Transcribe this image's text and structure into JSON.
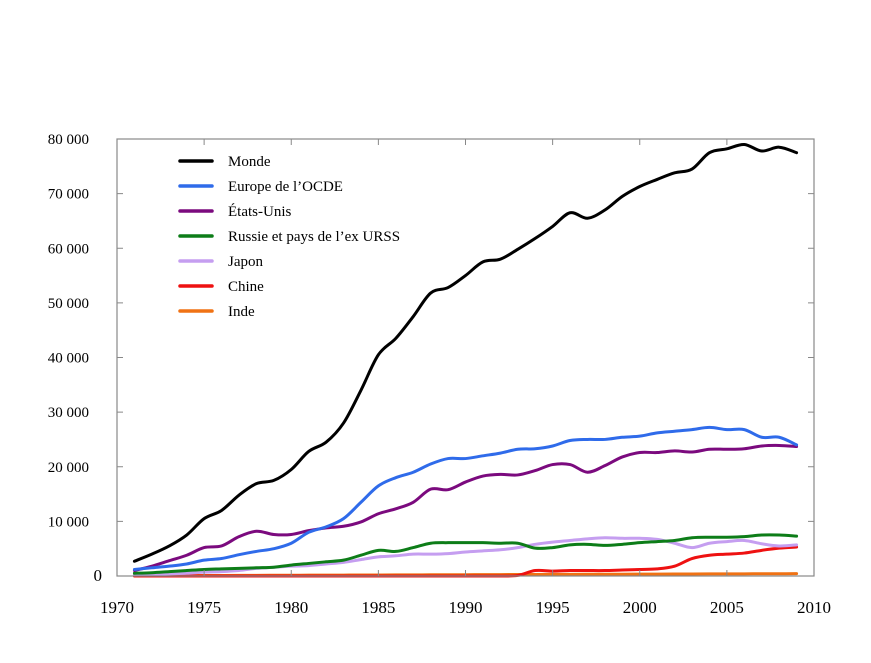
{
  "chart_data": {
    "type": "line",
    "title": "",
    "xlabel": "",
    "ylabel": "",
    "xlim": [
      1970,
      2010
    ],
    "ylim": [
      0,
      80000
    ],
    "x_ticks": [
      1970,
      1975,
      1980,
      1985,
      1990,
      1995,
      2000,
      2005,
      2010
    ],
    "y_ticks": [
      0,
      10000,
      20000,
      30000,
      40000,
      50000,
      60000,
      70000,
      80000
    ],
    "y_tick_labels": [
      "0",
      "10 000",
      "20 000",
      "30 000",
      "40 000",
      "50 000",
      "60 000",
      "70 000",
      "80 000"
    ],
    "grid": false,
    "legend_position": "top-left",
    "x": [
      1971,
      1972,
      1973,
      1974,
      1975,
      1976,
      1977,
      1978,
      1979,
      1980,
      1981,
      1982,
      1983,
      1984,
      1985,
      1986,
      1987,
      1988,
      1989,
      1990,
      1991,
      1992,
      1993,
      1994,
      1995,
      1996,
      1997,
      1998,
      1999,
      2000,
      2001,
      2002,
      2003,
      2004,
      2005,
      2006,
      2007,
      2008,
      2009
    ],
    "series": [
      {
        "name": "Monde",
        "color": "#000000",
        "values": [
          2700,
          4000,
          5500,
          7500,
          10500,
          12000,
          14800,
          16900,
          17500,
          19500,
          22800,
          24500,
          28000,
          34000,
          40500,
          43500,
          47500,
          51800,
          52800,
          55000,
          57500,
          58000,
          59800,
          61800,
          64000,
          66500,
          65500,
          67000,
          69500,
          71300,
          72600,
          73800,
          74500,
          77500,
          78200,
          79000,
          77800,
          78500,
          77500
        ]
      },
      {
        "name": "Europe de l’OCDE",
        "color": "#2f6bea",
        "values": [
          1200,
          1500,
          1800,
          2200,
          2900,
          3200,
          3900,
          4500,
          5000,
          6000,
          8000,
          9000,
          10500,
          13500,
          16500,
          18000,
          19000,
          20500,
          21500,
          21500,
          22000,
          22500,
          23200,
          23300,
          23800,
          24800,
          25000,
          25000,
          25400,
          25600,
          26200,
          26500,
          26800,
          27200,
          26800,
          26800,
          25400,
          25400,
          24000
        ]
      },
      {
        "name": "États-Unis",
        "color": "#7b0a7e",
        "values": [
          1000,
          1800,
          2800,
          3800,
          5200,
          5500,
          7200,
          8200,
          7600,
          7600,
          8300,
          8800,
          9100,
          9900,
          11400,
          12300,
          13500,
          15900,
          15800,
          17200,
          18300,
          18600,
          18500,
          19300,
          20400,
          20400,
          19000,
          20200,
          21800,
          22600,
          22600,
          22900,
          22700,
          23200,
          23200,
          23300,
          23800,
          23900,
          23700
        ]
      },
      {
        "name": "Russie et pays de l’ex URSS",
        "color": "#0d7d18",
        "values": [
          500,
          600,
          800,
          1000,
          1200,
          1300,
          1400,
          1500,
          1600,
          2000,
          2300,
          2600,
          2900,
          3800,
          4700,
          4500,
          5200,
          6000,
          6100,
          6100,
          6100,
          6000,
          6000,
          5100,
          5200,
          5700,
          5800,
          5600,
          5800,
          6100,
          6300,
          6500,
          7000,
          7100,
          7100,
          7200,
          7500,
          7500,
          7300
        ]
      },
      {
        "name": "Japon",
        "color": "#c59ef0",
        "values": [
          200,
          300,
          400,
          500,
          700,
          800,
          1000,
          1400,
          1600,
          1800,
          1900,
          2200,
          2500,
          3000,
          3500,
          3700,
          4000,
          4000,
          4100,
          4400,
          4600,
          4800,
          5200,
          5800,
          6200,
          6500,
          6800,
          7000,
          6900,
          6900,
          6700,
          6000,
          5200,
          6000,
          6300,
          6500,
          5900,
          5500,
          5700
        ]
      },
      {
        "name": "Chine",
        "color": "#ee1111",
        "values": [
          0,
          0,
          0,
          0,
          0,
          0,
          0,
          0,
          0,
          0,
          0,
          0,
          0,
          0,
          0,
          0,
          0,
          0,
          0,
          0,
          0,
          0,
          100,
          1000,
          900,
          1000,
          1000,
          1000,
          1100,
          1200,
          1300,
          1800,
          3200,
          3800,
          4000,
          4200,
          4700,
          5100,
          5300
        ]
      },
      {
        "name": "Inde",
        "color": "#f07214",
        "values": [
          50,
          60,
          70,
          80,
          90,
          100,
          110,
          120,
          130,
          140,
          150,
          160,
          170,
          180,
          190,
          200,
          210,
          220,
          230,
          240,
          250,
          260,
          270,
          280,
          290,
          300,
          310,
          320,
          330,
          340,
          350,
          360,
          370,
          380,
          390,
          400,
          410,
          420,
          430
        ]
      }
    ]
  }
}
